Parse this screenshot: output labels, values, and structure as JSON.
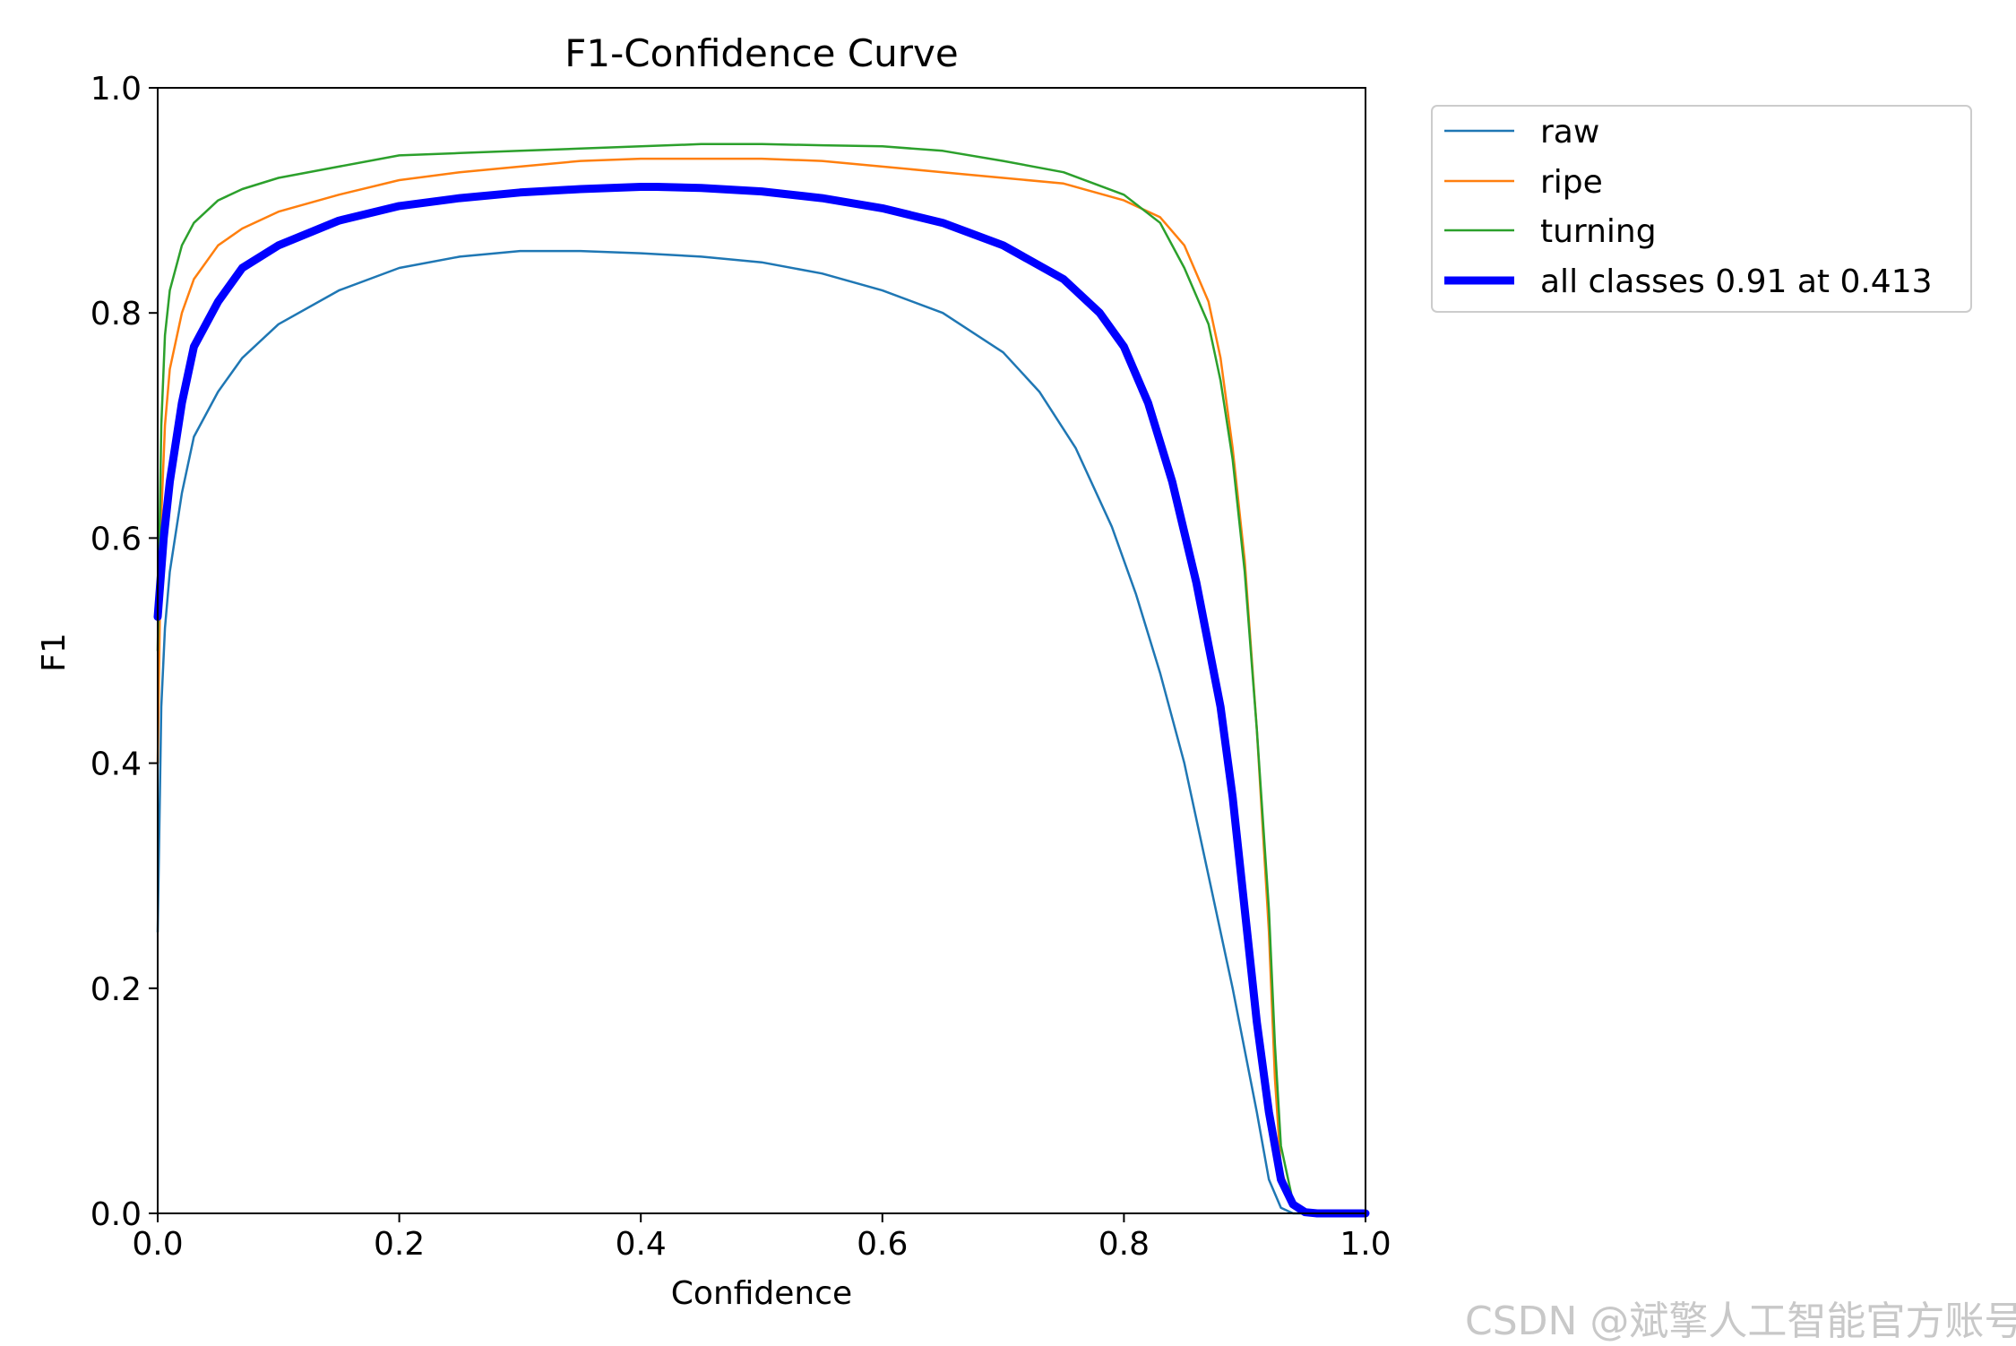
{
  "chart_data": {
    "type": "line",
    "title": "F1-Confidence Curve",
    "xlabel": "Confidence",
    "ylabel": "F1",
    "xlim": [
      0,
      1
    ],
    "ylim": [
      0,
      1
    ],
    "x_ticks": [
      "0.0",
      "0.2",
      "0.4",
      "0.6",
      "0.8",
      "1.0"
    ],
    "y_ticks": [
      "0.0",
      "0.2",
      "0.4",
      "0.6",
      "0.8",
      "1.0"
    ],
    "grid": false,
    "legend_placement": "outside-upper-right",
    "series": [
      {
        "name": "raw",
        "color": "#1f77b4",
        "points": [
          [
            0.0,
            0.25
          ],
          [
            0.003,
            0.45
          ],
          [
            0.006,
            0.52
          ],
          [
            0.01,
            0.57
          ],
          [
            0.02,
            0.64
          ],
          [
            0.03,
            0.69
          ],
          [
            0.05,
            0.73
          ],
          [
            0.07,
            0.76
          ],
          [
            0.1,
            0.79
          ],
          [
            0.15,
            0.82
          ],
          [
            0.2,
            0.84
          ],
          [
            0.25,
            0.85
          ],
          [
            0.3,
            0.855
          ],
          [
            0.35,
            0.855
          ],
          [
            0.4,
            0.853
          ],
          [
            0.45,
            0.85
          ],
          [
            0.5,
            0.845
          ],
          [
            0.55,
            0.835
          ],
          [
            0.6,
            0.82
          ],
          [
            0.65,
            0.8
          ],
          [
            0.7,
            0.765
          ],
          [
            0.73,
            0.73
          ],
          [
            0.76,
            0.68
          ],
          [
            0.79,
            0.61
          ],
          [
            0.81,
            0.55
          ],
          [
            0.83,
            0.48
          ],
          [
            0.85,
            0.4
          ],
          [
            0.87,
            0.3
          ],
          [
            0.89,
            0.2
          ],
          [
            0.91,
            0.09
          ],
          [
            0.92,
            0.03
          ],
          [
            0.93,
            0.005
          ],
          [
            0.94,
            0.0
          ],
          [
            1.0,
            0.0
          ]
        ]
      },
      {
        "name": "ripe",
        "color": "#ff7f0e",
        "points": [
          [
            0.0,
            0.4
          ],
          [
            0.003,
            0.62
          ],
          [
            0.006,
            0.7
          ],
          [
            0.01,
            0.75
          ],
          [
            0.02,
            0.8
          ],
          [
            0.03,
            0.83
          ],
          [
            0.05,
            0.86
          ],
          [
            0.07,
            0.875
          ],
          [
            0.1,
            0.89
          ],
          [
            0.15,
            0.905
          ],
          [
            0.2,
            0.918
          ],
          [
            0.25,
            0.925
          ],
          [
            0.3,
            0.93
          ],
          [
            0.35,
            0.935
          ],
          [
            0.4,
            0.937
          ],
          [
            0.45,
            0.937
          ],
          [
            0.5,
            0.937
          ],
          [
            0.55,
            0.935
          ],
          [
            0.6,
            0.93
          ],
          [
            0.65,
            0.925
          ],
          [
            0.7,
            0.92
          ],
          [
            0.75,
            0.915
          ],
          [
            0.8,
            0.9
          ],
          [
            0.83,
            0.885
          ],
          [
            0.85,
            0.86
          ],
          [
            0.87,
            0.81
          ],
          [
            0.88,
            0.76
          ],
          [
            0.89,
            0.68
          ],
          [
            0.9,
            0.58
          ],
          [
            0.91,
            0.43
          ],
          [
            0.92,
            0.25
          ],
          [
            0.925,
            0.12
          ],
          [
            0.93,
            0.04
          ],
          [
            0.94,
            0.005
          ],
          [
            0.95,
            0.0
          ],
          [
            1.0,
            0.0
          ]
        ]
      },
      {
        "name": "turning",
        "color": "#2ca02c",
        "points": [
          [
            0.0,
            0.5
          ],
          [
            0.003,
            0.7
          ],
          [
            0.006,
            0.78
          ],
          [
            0.01,
            0.82
          ],
          [
            0.02,
            0.86
          ],
          [
            0.03,
            0.88
          ],
          [
            0.05,
            0.9
          ],
          [
            0.07,
            0.91
          ],
          [
            0.1,
            0.92
          ],
          [
            0.15,
            0.93
          ],
          [
            0.2,
            0.94
          ],
          [
            0.25,
            0.942
          ],
          [
            0.3,
            0.944
          ],
          [
            0.35,
            0.946
          ],
          [
            0.4,
            0.948
          ],
          [
            0.45,
            0.95
          ],
          [
            0.5,
            0.95
          ],
          [
            0.55,
            0.949
          ],
          [
            0.6,
            0.948
          ],
          [
            0.65,
            0.944
          ],
          [
            0.7,
            0.935
          ],
          [
            0.75,
            0.925
          ],
          [
            0.8,
            0.905
          ],
          [
            0.83,
            0.88
          ],
          [
            0.85,
            0.84
          ],
          [
            0.87,
            0.79
          ],
          [
            0.88,
            0.74
          ],
          [
            0.89,
            0.67
          ],
          [
            0.9,
            0.57
          ],
          [
            0.91,
            0.43
          ],
          [
            0.92,
            0.27
          ],
          [
            0.925,
            0.15
          ],
          [
            0.93,
            0.06
          ],
          [
            0.94,
            0.01
          ],
          [
            0.95,
            0.0
          ],
          [
            1.0,
            0.0
          ]
        ]
      },
      {
        "name": "all classes 0.91 at 0.413",
        "color": "#0000ff",
        "bold": true,
        "points": [
          [
            0.0,
            0.53
          ],
          [
            0.005,
            0.6
          ],
          [
            0.01,
            0.65
          ],
          [
            0.02,
            0.72
          ],
          [
            0.03,
            0.77
          ],
          [
            0.05,
            0.81
          ],
          [
            0.07,
            0.84
          ],
          [
            0.1,
            0.86
          ],
          [
            0.15,
            0.882
          ],
          [
            0.2,
            0.895
          ],
          [
            0.25,
            0.902
          ],
          [
            0.3,
            0.907
          ],
          [
            0.35,
            0.91
          ],
          [
            0.4,
            0.912
          ],
          [
            0.413,
            0.912
          ],
          [
            0.45,
            0.911
          ],
          [
            0.5,
            0.908
          ],
          [
            0.55,
            0.902
          ],
          [
            0.6,
            0.893
          ],
          [
            0.65,
            0.88
          ],
          [
            0.7,
            0.86
          ],
          [
            0.75,
            0.83
          ],
          [
            0.78,
            0.8
          ],
          [
            0.8,
            0.77
          ],
          [
            0.82,
            0.72
          ],
          [
            0.84,
            0.65
          ],
          [
            0.86,
            0.56
          ],
          [
            0.88,
            0.45
          ],
          [
            0.89,
            0.37
          ],
          [
            0.9,
            0.27
          ],
          [
            0.91,
            0.17
          ],
          [
            0.92,
            0.09
          ],
          [
            0.93,
            0.03
          ],
          [
            0.94,
            0.008
          ],
          [
            0.95,
            0.001
          ],
          [
            0.96,
            0.0
          ],
          [
            1.0,
            0.0
          ]
        ]
      }
    ]
  },
  "watermark": "CSDN @斌擎人工智能官方账号"
}
